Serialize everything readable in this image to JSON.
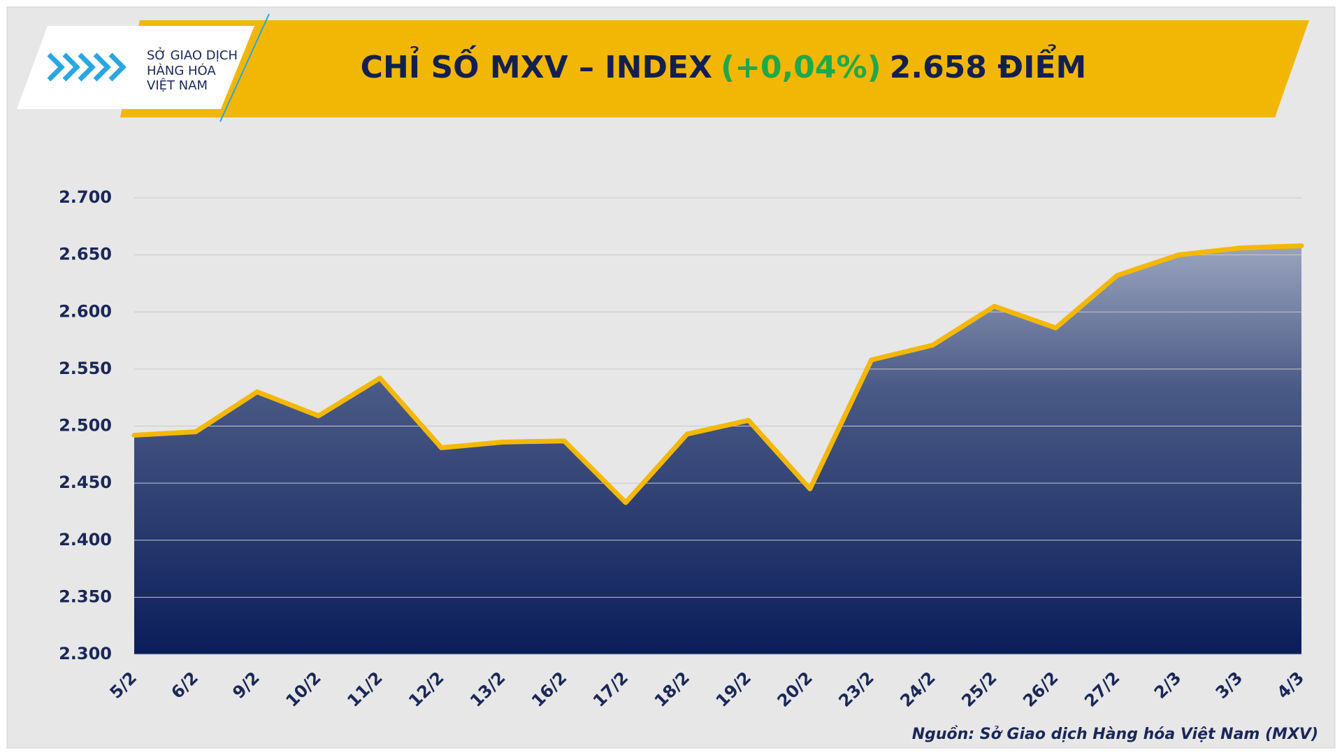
{
  "logo": {
    "lines": [
      "SỞ GIAO DỊCH",
      "HÀNG HÓA",
      "VIỆT NAM"
    ]
  },
  "chart_data": {
    "type": "area",
    "title_parts": [
      {
        "text": "CHỈ SỐ MXV – INDEX",
        "color": "#13204f"
      },
      {
        "text": "(+0,04%)",
        "color": "#1fa84a"
      },
      {
        "text": "2.658 ĐIỂM",
        "color": "#13204f"
      }
    ],
    "source": "Nguồn: Sở Giao dịch Hàng hóa Việt Nam (MXV)",
    "categories": [
      "5/2",
      "6/2",
      "9/2",
      "10/2",
      "11/2",
      "12/2",
      "13/2",
      "16/2",
      "17/2",
      "18/2",
      "19/2",
      "20/2",
      "23/2",
      "24/2",
      "25/2",
      "26/2",
      "27/2",
      "2/3",
      "3/3",
      "4/3"
    ],
    "values": [
      2492,
      2495,
      2530,
      2509,
      2542,
      2481,
      2486,
      2487,
      2433,
      2493,
      2505,
      2445,
      2558,
      2571,
      2605,
      2586,
      2632,
      2650,
      2656,
      2658
    ],
    "color": "#f5b800",
    "ylim": [
      2300,
      2700
    ],
    "yticks": [
      {
        "value": 2300,
        "label": "2.300"
      },
      {
        "value": 2350,
        "label": "2.350"
      },
      {
        "value": 2400,
        "label": "2.400"
      },
      {
        "value": 2450,
        "label": "2.450"
      },
      {
        "value": 2500,
        "label": "2.500"
      },
      {
        "value": 2550,
        "label": "2.550"
      },
      {
        "value": 2600,
        "label": "2.600"
      },
      {
        "value": 2650,
        "label": "2.650"
      },
      {
        "value": 2700,
        "label": "2.700"
      }
    ],
    "grid": true
  }
}
